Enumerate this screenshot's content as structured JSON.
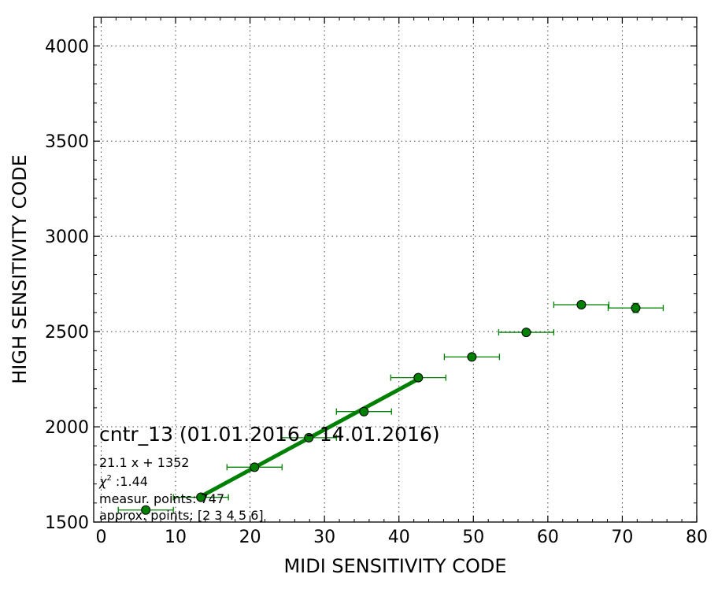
{
  "chart_data": {
    "type": "scatter",
    "xlabel": "MIDI SENSITIVITY CODE",
    "ylabel": "HIGH SENSITIVITY CODE",
    "xlim": [
      -1,
      80
    ],
    "ylim": [
      1500,
      4150
    ],
    "xticks": [
      0,
      10,
      20,
      30,
      40,
      50,
      60,
      70,
      80
    ],
    "yticks": [
      1500,
      2000,
      2500,
      3000,
      3500,
      4000
    ],
    "grid": true,
    "colors": {
      "points": "#008000",
      "fit": "#008000",
      "errorbars": "#008000"
    },
    "points": [
      {
        "x": 6.0,
        "y": 1563,
        "xerr": 3.7,
        "yerr": 6
      },
      {
        "x": 13.4,
        "y": 1630,
        "xerr": 3.7,
        "yerr": 6
      },
      {
        "x": 20.6,
        "y": 1788,
        "xerr": 3.7,
        "yerr": 8
      },
      {
        "x": 27.9,
        "y": 1943,
        "xerr": 3.7,
        "yerr": 8
      },
      {
        "x": 35.3,
        "y": 2080,
        "xerr": 3.7,
        "yerr": 8
      },
      {
        "x": 42.6,
        "y": 2258,
        "xerr": 3.7,
        "yerr": 10
      },
      {
        "x": 49.8,
        "y": 2367,
        "xerr": 3.7,
        "yerr": 12
      },
      {
        "x": 57.1,
        "y": 2496,
        "xerr": 3.7,
        "yerr": 14
      },
      {
        "x": 64.5,
        "y": 2641,
        "xerr": 3.7,
        "yerr": 16
      },
      {
        "x": 71.8,
        "y": 2624,
        "xerr": 3.7,
        "yerr": 24
      }
    ],
    "fit": {
      "slope": 21.1,
      "intercept": 1352,
      "x_range": [
        13.4,
        42.6
      ]
    },
    "annotations": {
      "title": "cntr_13 (01.01.2016 - 14.01.2016)",
      "equation": "21.1 x + 1352",
      "chi2_symbol": "χ",
      "chi2_sup": "2",
      "chi2_value": " :1.44",
      "measur": "measur. points: 747",
      "approx": "approx. points: [2 3 4 5 6]"
    }
  }
}
